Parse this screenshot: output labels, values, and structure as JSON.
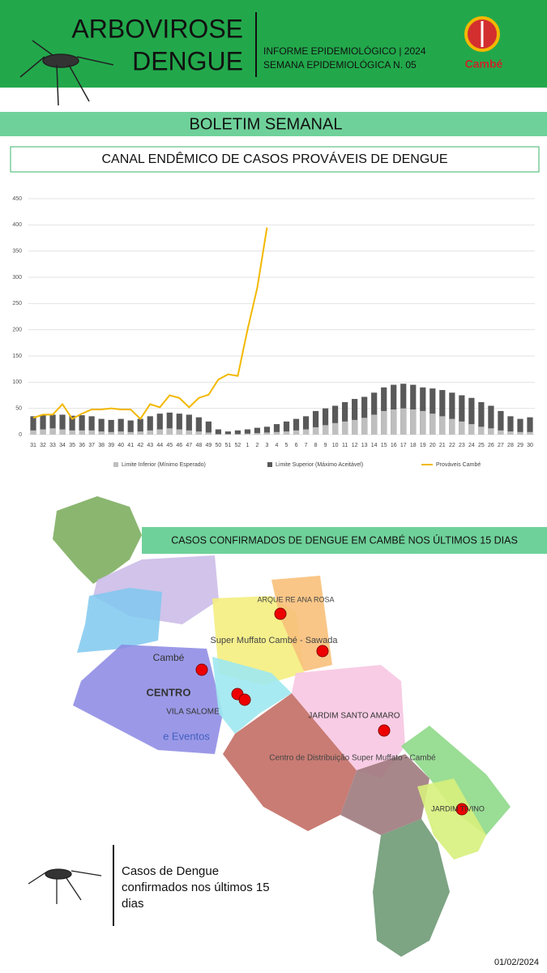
{
  "header": {
    "title_line1": "ARBOVIROSE",
    "title_line2": "DENGUE",
    "info_line1": "INFORME EPIDEMIOLÓGICO | 2024",
    "info_line2": "SEMANA EPIDEMIOLÓGICA  N. 05",
    "logo": "Cambé"
  },
  "banner": "BOLETIM SEMANAL",
  "chart_data": {
    "type": "bar_line",
    "title": "CANAL ENDÊMICO DE CASOS PROVÁVEIS DE DENGUE",
    "categories": [
      "31",
      "32",
      "33",
      "34",
      "35",
      "36",
      "37",
      "38",
      "39",
      "40",
      "41",
      "42",
      "43",
      "44",
      "45",
      "46",
      "47",
      "48",
      "49",
      "50",
      "51",
      "52",
      "1",
      "2",
      "3",
      "4",
      "5",
      "6",
      "7",
      "8",
      "9",
      "10",
      "11",
      "12",
      "13",
      "14",
      "15",
      "16",
      "17",
      "18",
      "19",
      "20",
      "21",
      "22",
      "23",
      "24",
      "25",
      "26",
      "27",
      "28",
      "29",
      "30"
    ],
    "series": [
      {
        "name": "Limite Superior (Máximo Aceitável)",
        "color": "#595959",
        "kind": "bar",
        "values": [
          35,
          37,
          38,
          38,
          36,
          37,
          35,
          30,
          28,
          30,
          27,
          30,
          35,
          40,
          42,
          40,
          38,
          33,
          25,
          10,
          6,
          8,
          10,
          13,
          15,
          20,
          25,
          30,
          35,
          45,
          50,
          55,
          62,
          68,
          72,
          80,
          90,
          95,
          97,
          95,
          90,
          88,
          85,
          80,
          75,
          70,
          62,
          55,
          45,
          35,
          30,
          33
        ]
      },
      {
        "name": "Limite Inferior (Mínimo Esperado)",
        "color": "#bfbfbf",
        "kind": "bar",
        "values": [
          8,
          10,
          12,
          10,
          8,
          8,
          8,
          6,
          5,
          6,
          5,
          6,
          8,
          10,
          12,
          10,
          8,
          6,
          4,
          1,
          1,
          1,
          2,
          3,
          4,
          5,
          6,
          8,
          10,
          14,
          18,
          22,
          25,
          28,
          32,
          38,
          45,
          48,
          50,
          48,
          45,
          40,
          35,
          30,
          25,
          20,
          15,
          12,
          8,
          6,
          5,
          5
        ]
      },
      {
        "name": "Prováveis Cambé",
        "color": "#f2b800",
        "kind": "line",
        "values": [
          32,
          38,
          38,
          58,
          30,
          40,
          48,
          48,
          50,
          48,
          48,
          30,
          58,
          52,
          75,
          70,
          52,
          70,
          76,
          105,
          115,
          112,
          200,
          280,
          395,
          null,
          null,
          null,
          null,
          null,
          null,
          null,
          null,
          null,
          null,
          null,
          null,
          null,
          null,
          null,
          null,
          null,
          null,
          null,
          null,
          null,
          null,
          null,
          null,
          null,
          null,
          null
        ]
      }
    ],
    "legend_order": [
      1,
      0,
      2
    ],
    "ylim": [
      0,
      450
    ],
    "yticks": [
      0,
      50,
      100,
      150,
      200,
      250,
      300,
      350,
      400,
      450
    ],
    "grid": true
  },
  "map": {
    "title": "CASOS CONFIRMADOS DE DENGUE EM CAMBÉ NOS ÚLTIMOS 15 DIAS",
    "labels": [
      "CENTRO",
      "Cambé",
      "VILA SALOME",
      "e Eventos",
      "Super Muffato Cambé - Sawada",
      "ARQUE RE ANA ROSA",
      "JARDIM SANTO AMARO",
      "Centro de Distribuição Super Muffato - Cambé",
      "JARDIM TIVINO"
    ]
  },
  "note": "Casos de Dengue confirmados nos últimos 15 dias",
  "date": "01/02/2024"
}
